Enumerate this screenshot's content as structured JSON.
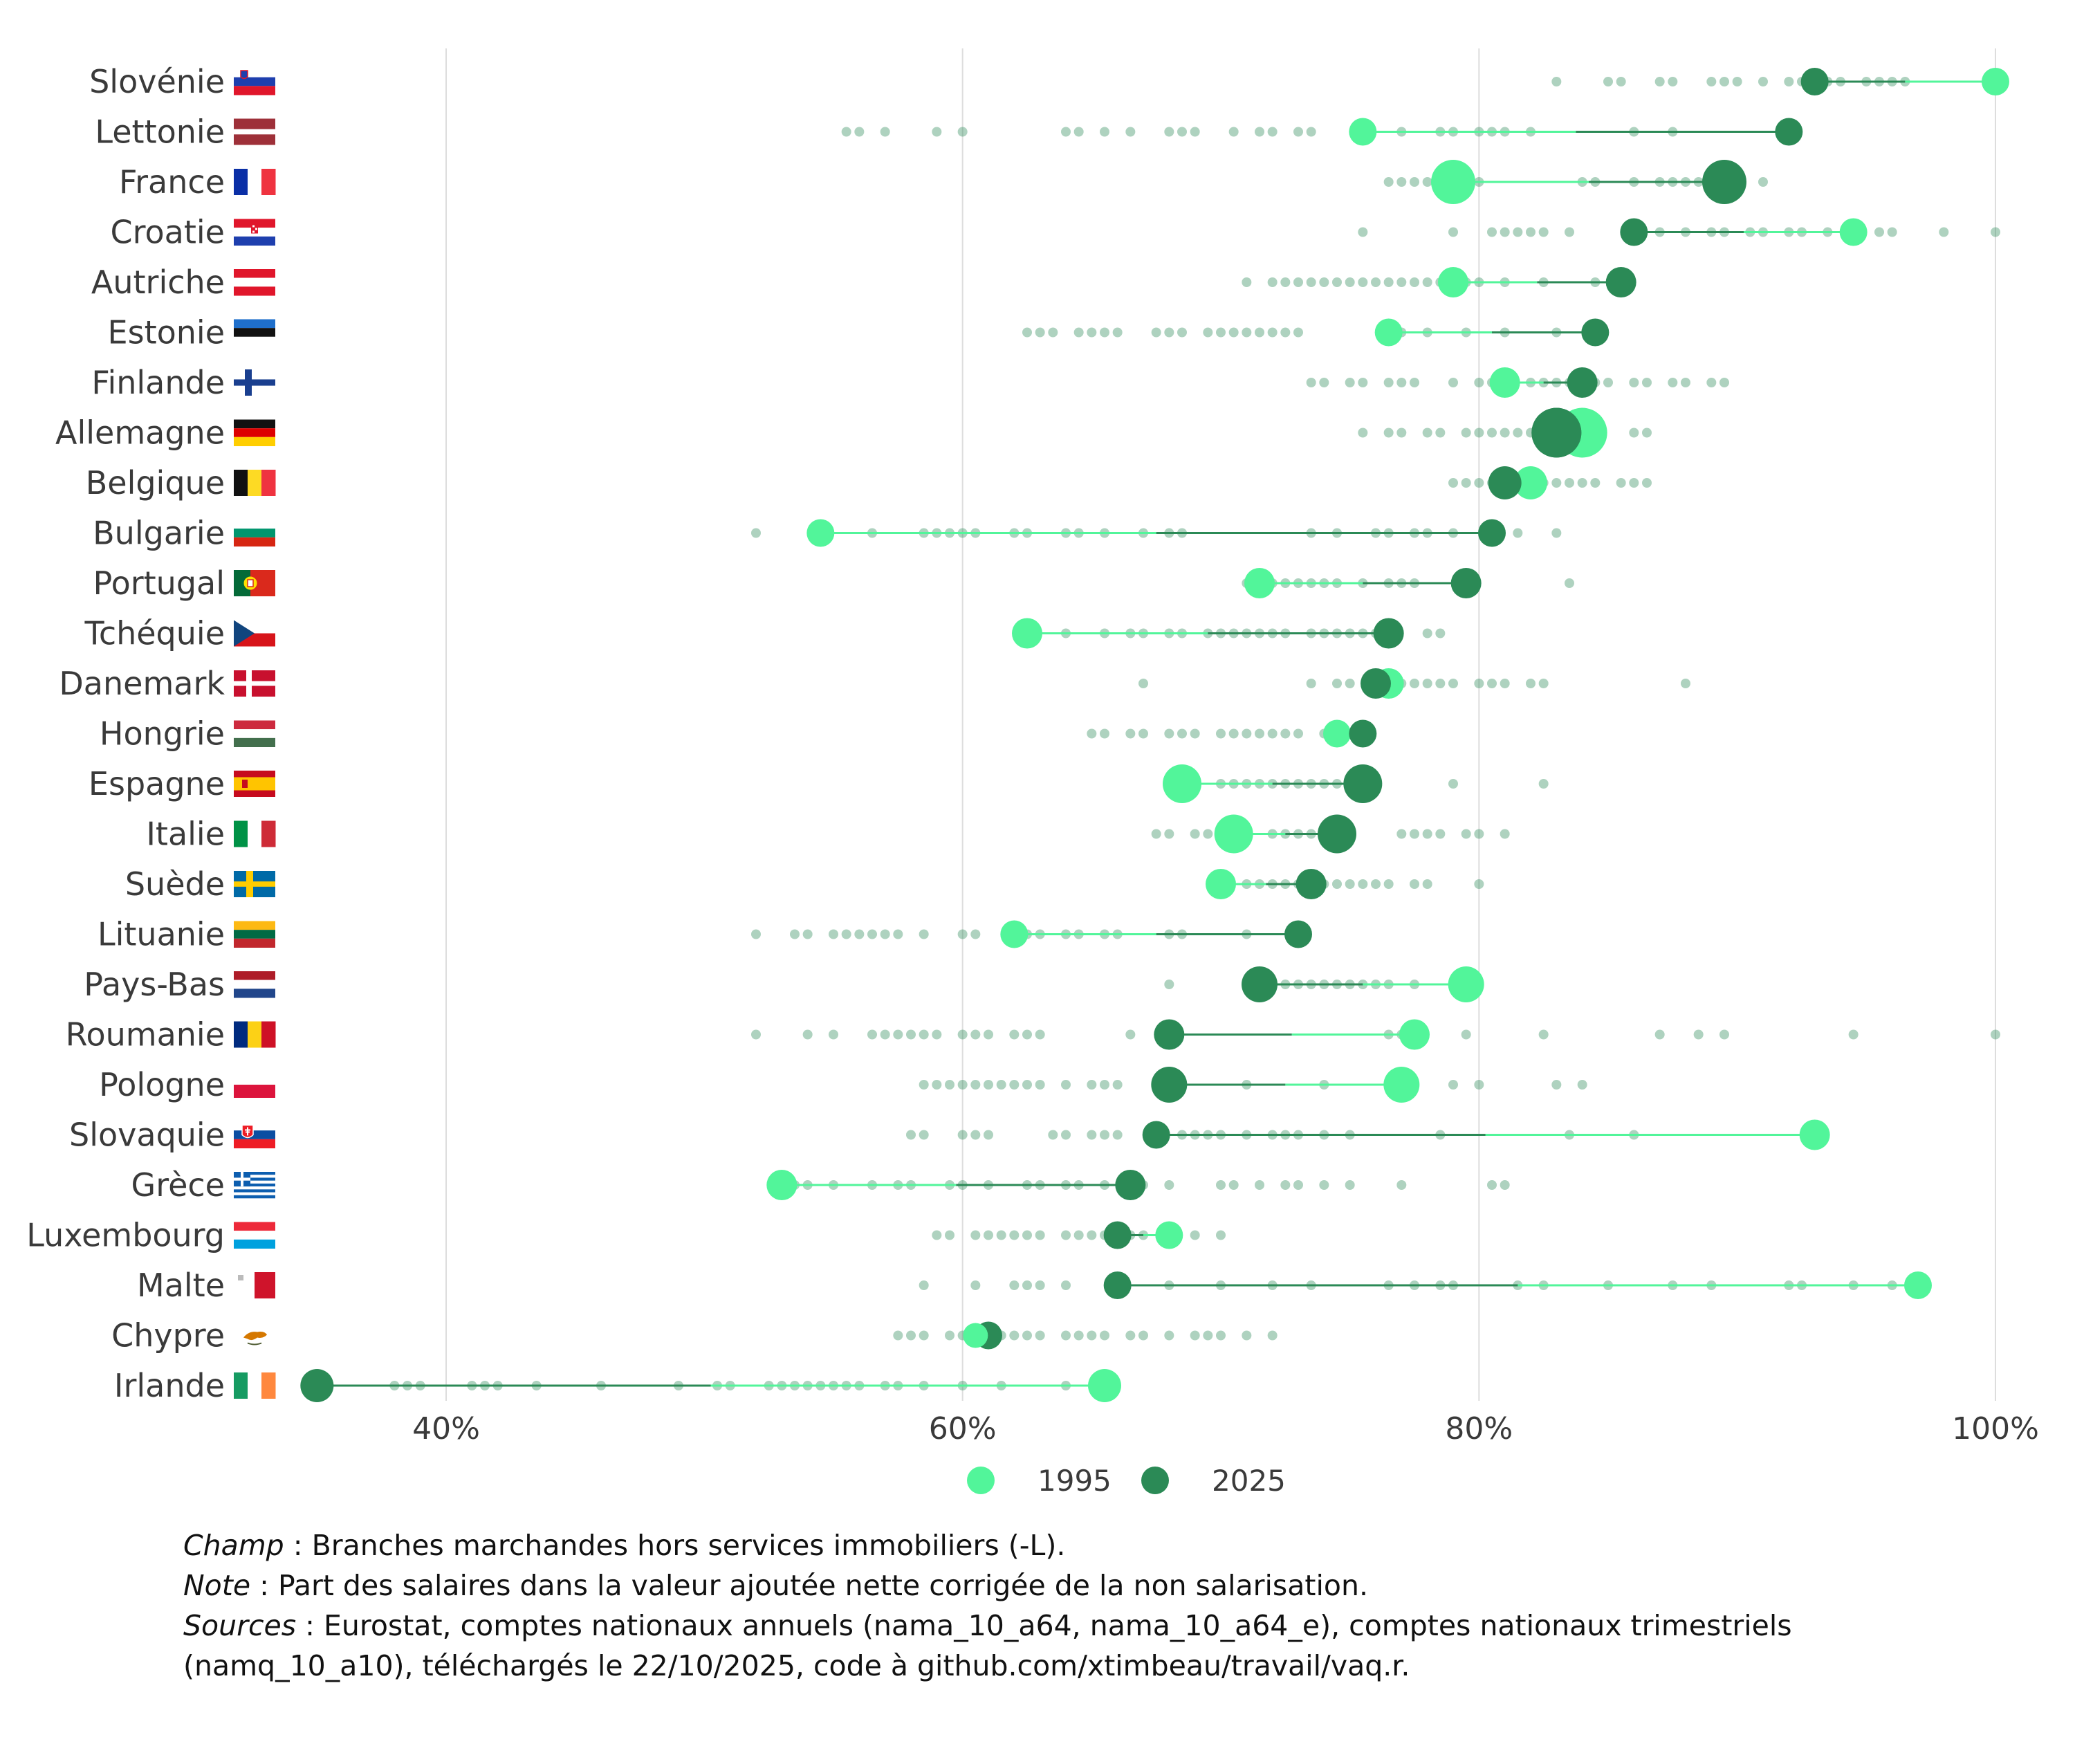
{
  "chart_data": {
    "type": "scatter",
    "xlim": [
      0.3,
      1.0
    ],
    "xticks": [
      0.4,
      0.6,
      0.8,
      1.0
    ],
    "xtick_labels": [
      "40%",
      "60%",
      "80%",
      "100%"
    ],
    "grid": "vertical",
    "legend_position": "bottom",
    "series": [
      {
        "name": "1995",
        "color": "#52f59a"
      },
      {
        "name": "2025",
        "color": "#2b8a56"
      }
    ],
    "rows": [
      {
        "country": "Slovénie",
        "flag": "si",
        "v1995": 1.0,
        "v2025": 0.93,
        "s1995": 20,
        "s2025": 20,
        "pts": [
          0.83,
          0.85,
          0.855,
          0.87,
          0.875,
          0.89,
          0.895,
          0.9,
          0.91,
          0.92,
          0.925,
          0.935,
          0.94,
          0.95,
          0.955,
          0.96,
          0.965
        ]
      },
      {
        "country": "Lettonie",
        "flag": "lv",
        "v1995": 0.755,
        "v2025": 0.92,
        "s1995": 20,
        "s2025": 20,
        "pts": [
          0.555,
          0.56,
          0.57,
          0.59,
          0.6,
          0.64,
          0.645,
          0.655,
          0.665,
          0.68,
          0.685,
          0.69,
          0.705,
          0.715,
          0.72,
          0.73,
          0.735,
          0.77,
          0.785,
          0.79,
          0.8,
          0.805,
          0.81,
          0.82,
          0.86,
          0.875
        ]
      },
      {
        "country": "France",
        "flag": "fr",
        "v1995": 0.79,
        "v2025": 0.895,
        "s1995": 32,
        "s2025": 32,
        "pts": [
          0.765,
          0.77,
          0.775,
          0.78,
          0.8,
          0.84,
          0.845,
          0.86,
          0.87,
          0.875,
          0.88,
          0.885,
          0.89,
          0.91
        ]
      },
      {
        "country": "Croatie",
        "flag": "hr",
        "v1995": 0.945,
        "v2025": 0.86,
        "s1995": 20,
        "s2025": 20,
        "pts": [
          0.755,
          0.79,
          0.805,
          0.81,
          0.815,
          0.82,
          0.825,
          0.835,
          0.87,
          0.88,
          0.89,
          0.895,
          0.905,
          0.91,
          0.92,
          0.925,
          0.935,
          0.955,
          0.96,
          0.98,
          1.0
        ]
      },
      {
        "country": "Autriche",
        "flag": "at",
        "v1995": 0.79,
        "v2025": 0.855,
        "s1995": 22,
        "s2025": 22,
        "pts": [
          0.71,
          0.72,
          0.725,
          0.73,
          0.735,
          0.74,
          0.745,
          0.75,
          0.755,
          0.76,
          0.765,
          0.77,
          0.775,
          0.78,
          0.785,
          0.795,
          0.8,
          0.81,
          0.825,
          0.845
        ]
      },
      {
        "country": "Estonie",
        "flag": "ee",
        "v1995": 0.765,
        "v2025": 0.845,
        "s1995": 20,
        "s2025": 20,
        "pts": [
          0.625,
          0.63,
          0.635,
          0.645,
          0.65,
          0.655,
          0.66,
          0.675,
          0.68,
          0.685,
          0.695,
          0.7,
          0.705,
          0.71,
          0.715,
          0.72,
          0.725,
          0.73,
          0.77,
          0.78,
          0.795,
          0.81,
          0.83
        ]
      },
      {
        "country": "Finlande",
        "flag": "fi",
        "v1995": 0.81,
        "v2025": 0.84,
        "s1995": 22,
        "s2025": 22,
        "pts": [
          0.735,
          0.74,
          0.75,
          0.755,
          0.765,
          0.77,
          0.775,
          0.79,
          0.8,
          0.805,
          0.82,
          0.825,
          0.83,
          0.835,
          0.845,
          0.85,
          0.86,
          0.865,
          0.875,
          0.88,
          0.89,
          0.895
        ]
      },
      {
        "country": "Allemagne",
        "flag": "de",
        "v1995": 0.84,
        "v2025": 0.83,
        "s1995": 36,
        "s2025": 36,
        "pts": [
          0.755,
          0.765,
          0.77,
          0.78,
          0.785,
          0.795,
          0.8,
          0.805,
          0.81,
          0.815,
          0.82,
          0.825,
          0.835,
          0.845,
          0.86,
          0.865
        ]
      },
      {
        "country": "Belgique",
        "flag": "be",
        "v1995": 0.82,
        "v2025": 0.81,
        "s1995": 24,
        "s2025": 24,
        "pts": [
          0.79,
          0.795,
          0.8,
          0.805,
          0.815,
          0.825,
          0.83,
          0.835,
          0.84,
          0.845,
          0.855,
          0.86,
          0.865
        ]
      },
      {
        "country": "Bulgarie",
        "flag": "bg",
        "v1995": 0.545,
        "v2025": 0.805,
        "s1995": 20,
        "s2025": 20,
        "pts": [
          0.52,
          0.565,
          0.585,
          0.59,
          0.595,
          0.6,
          0.605,
          0.62,
          0.625,
          0.64,
          0.645,
          0.655,
          0.67,
          0.68,
          0.685,
          0.735,
          0.745,
          0.76,
          0.765,
          0.775,
          0.78,
          0.79,
          0.815,
          0.83
        ]
      },
      {
        "country": "Portugal",
        "flag": "pt",
        "v1995": 0.715,
        "v2025": 0.795,
        "s1995": 22,
        "s2025": 22,
        "pts": [
          0.71,
          0.715,
          0.72,
          0.725,
          0.73,
          0.735,
          0.74,
          0.745,
          0.755,
          0.765,
          0.77,
          0.775,
          0.835
        ]
      },
      {
        "country": "Tchéquie",
        "flag": "cz",
        "v1995": 0.625,
        "v2025": 0.765,
        "s1995": 22,
        "s2025": 22,
        "pts": [
          0.64,
          0.655,
          0.665,
          0.67,
          0.68,
          0.685,
          0.695,
          0.7,
          0.705,
          0.71,
          0.715,
          0.72,
          0.725,
          0.735,
          0.74,
          0.745,
          0.75,
          0.755,
          0.76,
          0.78,
          0.785
        ]
      },
      {
        "country": "Danemark",
        "flag": "dk",
        "v1995": 0.765,
        "v2025": 0.76,
        "s1995": 22,
        "s2025": 22,
        "pts": [
          0.67,
          0.735,
          0.745,
          0.75,
          0.77,
          0.775,
          0.78,
          0.785,
          0.79,
          0.8,
          0.805,
          0.81,
          0.82,
          0.825,
          0.88
        ]
      },
      {
        "country": "Hongrie",
        "flag": "hu",
        "v1995": 0.745,
        "v2025": 0.755,
        "s1995": 20,
        "s2025": 20,
        "pts": [
          0.65,
          0.655,
          0.665,
          0.67,
          0.68,
          0.685,
          0.69,
          0.7,
          0.705,
          0.71,
          0.715,
          0.72,
          0.725,
          0.73,
          0.74
        ]
      },
      {
        "country": "Espagne",
        "flag": "es",
        "v1995": 0.685,
        "v2025": 0.755,
        "s1995": 28,
        "s2025": 28,
        "pts": [
          0.69,
          0.7,
          0.705,
          0.71,
          0.715,
          0.72,
          0.725,
          0.73,
          0.735,
          0.74,
          0.745,
          0.79,
          0.825
        ]
      },
      {
        "country": "Italie",
        "flag": "it",
        "v1995": 0.705,
        "v2025": 0.745,
        "s1995": 28,
        "s2025": 28,
        "pts": [
          0.675,
          0.68,
          0.69,
          0.695,
          0.7,
          0.71,
          0.72,
          0.725,
          0.73,
          0.735,
          0.74,
          0.75,
          0.77,
          0.775,
          0.78,
          0.785,
          0.795,
          0.8,
          0.81
        ]
      },
      {
        "country": "Suède",
        "flag": "se",
        "v1995": 0.7,
        "v2025": 0.735,
        "s1995": 22,
        "s2025": 22,
        "pts": [
          0.71,
          0.715,
          0.72,
          0.725,
          0.73,
          0.74,
          0.745,
          0.75,
          0.755,
          0.76,
          0.765,
          0.775,
          0.78,
          0.8
        ]
      },
      {
        "country": "Lituanie",
        "flag": "lt",
        "v1995": 0.62,
        "v2025": 0.73,
        "s1995": 20,
        "s2025": 20,
        "pts": [
          0.52,
          0.535,
          0.54,
          0.55,
          0.555,
          0.56,
          0.565,
          0.57,
          0.575,
          0.585,
          0.6,
          0.605,
          0.625,
          0.63,
          0.64,
          0.645,
          0.655,
          0.66,
          0.68,
          0.685,
          0.71
        ]
      },
      {
        "country": "Pays-Bas",
        "flag": "nl",
        "v1995": 0.795,
        "v2025": 0.715,
        "s1995": 26,
        "s2025": 26,
        "pts": [
          0.68,
          0.71,
          0.72,
          0.725,
          0.73,
          0.735,
          0.74,
          0.745,
          0.75,
          0.755,
          0.76,
          0.765,
          0.775,
          0.79
        ]
      },
      {
        "country": "Roumanie",
        "flag": "ro",
        "v1995": 0.775,
        "v2025": 0.68,
        "s1995": 22,
        "s2025": 22,
        "pts": [
          0.52,
          0.54,
          0.55,
          0.565,
          0.57,
          0.575,
          0.58,
          0.585,
          0.59,
          0.6,
          0.605,
          0.61,
          0.62,
          0.625,
          0.63,
          0.665,
          0.765,
          0.77,
          0.795,
          0.825,
          0.87,
          0.885,
          0.895,
          0.945,
          1.0
        ]
      },
      {
        "country": "Pologne",
        "flag": "pl",
        "v1995": 0.77,
        "v2025": 0.68,
        "s1995": 26,
        "s2025": 26,
        "pts": [
          0.585,
          0.59,
          0.595,
          0.6,
          0.605,
          0.61,
          0.615,
          0.62,
          0.625,
          0.63,
          0.64,
          0.65,
          0.655,
          0.66,
          0.71,
          0.74,
          0.79,
          0.8,
          0.83,
          0.84
        ]
      },
      {
        "country": "Slovaquie",
        "flag": "sk",
        "v1995": 0.93,
        "v2025": 0.675,
        "s1995": 22,
        "s2025": 20,
        "pts": [
          0.58,
          0.585,
          0.6,
          0.605,
          0.61,
          0.635,
          0.64,
          0.65,
          0.655,
          0.66,
          0.685,
          0.69,
          0.695,
          0.7,
          0.71,
          0.72,
          0.725,
          0.73,
          0.74,
          0.75,
          0.785,
          0.835,
          0.86
        ]
      },
      {
        "country": "Grèce",
        "flag": "gr",
        "v1995": 0.53,
        "v2025": 0.665,
        "s1995": 22,
        "s2025": 22,
        "pts": [
          0.535,
          0.54,
          0.55,
          0.565,
          0.575,
          0.58,
          0.595,
          0.6,
          0.61,
          0.625,
          0.63,
          0.64,
          0.645,
          0.655,
          0.67,
          0.68,
          0.7,
          0.705,
          0.715,
          0.725,
          0.73,
          0.74,
          0.75,
          0.77,
          0.805,
          0.81
        ]
      },
      {
        "country": "Luxembourg",
        "flag": "lu",
        "v1995": 0.68,
        "v2025": 0.66,
        "s1995": 20,
        "s2025": 20,
        "pts": [
          0.59,
          0.595,
          0.605,
          0.61,
          0.615,
          0.62,
          0.625,
          0.63,
          0.64,
          0.645,
          0.65,
          0.655,
          0.665,
          0.67,
          0.69,
          0.7
        ]
      },
      {
        "country": "Malte",
        "flag": "mt",
        "v1995": 0.97,
        "v2025": 0.66,
        "s1995": 20,
        "s2025": 20,
        "pts": [
          0.585,
          0.605,
          0.62,
          0.625,
          0.63,
          0.64,
          0.68,
          0.7,
          0.72,
          0.735,
          0.765,
          0.775,
          0.785,
          0.79,
          0.815,
          0.825,
          0.85,
          0.875,
          0.89,
          0.92,
          0.925,
          0.945,
          0.96
        ]
      },
      {
        "country": "Chypre",
        "flag": "cy",
        "v1995": 0.605,
        "v2025": 0.61,
        "s1995": 18,
        "s2025": 20,
        "pts": [
          0.575,
          0.58,
          0.585,
          0.595,
          0.6,
          0.615,
          0.62,
          0.625,
          0.63,
          0.64,
          0.645,
          0.65,
          0.655,
          0.665,
          0.67,
          0.68,
          0.69,
          0.695,
          0.7,
          0.71,
          0.72
        ]
      },
      {
        "country": "Irlande",
        "flag": "ie",
        "v1995": 0.655,
        "v2025": 0.35,
        "s1995": 24,
        "s2025": 24,
        "pts": [
          0.38,
          0.385,
          0.39,
          0.41,
          0.415,
          0.42,
          0.435,
          0.46,
          0.49,
          0.505,
          0.51,
          0.525,
          0.53,
          0.535,
          0.54,
          0.545,
          0.55,
          0.555,
          0.56,
          0.57,
          0.575,
          0.585,
          0.6,
          0.615,
          0.64
        ]
      }
    ]
  },
  "legend": {
    "label_1995": "1995",
    "label_2025": "2025"
  },
  "notes": {
    "champ_label": "Champ",
    "champ_text": " : Branches marchandes hors services immobiliers (-L).",
    "note_label": "Note",
    "note_text": " : Part des salaires dans la valeur ajoutée nette corrigée de la non salarisation.",
    "sources_label": "Sources",
    "sources_text": " : Eurostat, comptes nationaux annuels (nama_10_a64, nama_10_a64_e), comptes nationaux trimestriels",
    "sources_text_2": "(namq_10_a10), téléchargés le 22/10/2025, code à github.com/xtimbeau/travail/vaq.r."
  }
}
